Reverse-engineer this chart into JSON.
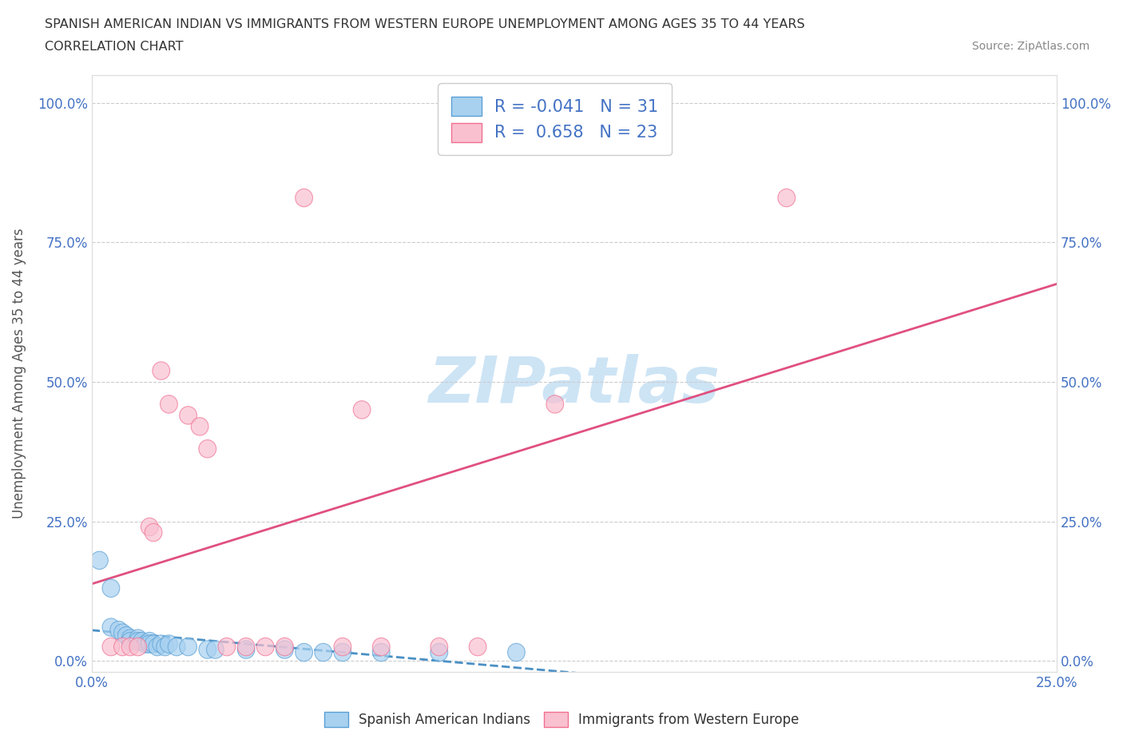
{
  "title_line1": "SPANISH AMERICAN INDIAN VS IMMIGRANTS FROM WESTERN EUROPE UNEMPLOYMENT AMONG AGES 35 TO 44 YEARS",
  "title_line2": "CORRELATION CHART",
  "source": "Source: ZipAtlas.com",
  "ylabel": "Unemployment Among Ages 35 to 44 years",
  "xlim": [
    0,
    0.25
  ],
  "ylim": [
    -0.02,
    1.05
  ],
  "xticks": [
    0.0,
    0.05,
    0.1,
    0.15,
    0.2,
    0.25
  ],
  "xtick_labels": [
    "0.0%",
    "",
    "",
    "",
    "",
    "25.0%"
  ],
  "ytick_labels": [
    "0.0%",
    "25.0%",
    "50.0%",
    "75.0%",
    "100.0%"
  ],
  "yticks": [
    0.0,
    0.25,
    0.5,
    0.75,
    1.0
  ],
  "r_blue": -0.041,
  "n_blue": 31,
  "r_pink": 0.658,
  "n_pink": 23,
  "blue_color": "#a8d1f0",
  "pink_color": "#f9c0d0",
  "blue_edge_color": "#5a9fd4",
  "pink_edge_color": "#f07090",
  "blue_line_color": "#4a90c4",
  "pink_line_color": "#e05080",
  "watermark_color": "#cde4f5",
  "legend_label_blue": "Spanish American Indians",
  "legend_label_pink": "Immigrants from Western Europe",
  "blue_scatter_x": [
    0.002,
    0.005,
    0.005,
    0.007,
    0.008,
    0.009,
    0.01,
    0.01,
    0.012,
    0.012,
    0.013,
    0.014,
    0.015,
    0.015,
    0.016,
    0.017,
    0.018,
    0.019,
    0.02,
    0.022,
    0.025,
    0.03,
    0.032,
    0.04,
    0.05,
    0.055,
    0.06,
    0.065,
    0.075,
    0.09,
    0.11
  ],
  "blue_scatter_y": [
    0.18,
    0.13,
    0.06,
    0.055,
    0.05,
    0.045,
    0.04,
    0.035,
    0.04,
    0.035,
    0.035,
    0.03,
    0.035,
    0.03,
    0.03,
    0.025,
    0.03,
    0.025,
    0.03,
    0.025,
    0.025,
    0.02,
    0.02,
    0.02,
    0.02,
    0.015,
    0.015,
    0.015,
    0.015,
    0.015,
    0.015
  ],
  "pink_scatter_x": [
    0.005,
    0.008,
    0.01,
    0.012,
    0.015,
    0.016,
    0.018,
    0.02,
    0.025,
    0.028,
    0.03,
    0.035,
    0.04,
    0.045,
    0.05,
    0.055,
    0.065,
    0.07,
    0.075,
    0.09,
    0.1,
    0.12,
    0.18
  ],
  "pink_scatter_y": [
    0.025,
    0.025,
    0.025,
    0.025,
    0.24,
    0.23,
    0.52,
    0.46,
    0.44,
    0.42,
    0.38,
    0.025,
    0.025,
    0.025,
    0.025,
    0.83,
    0.025,
    0.45,
    0.025,
    0.025,
    0.025,
    0.46,
    0.83
  ]
}
